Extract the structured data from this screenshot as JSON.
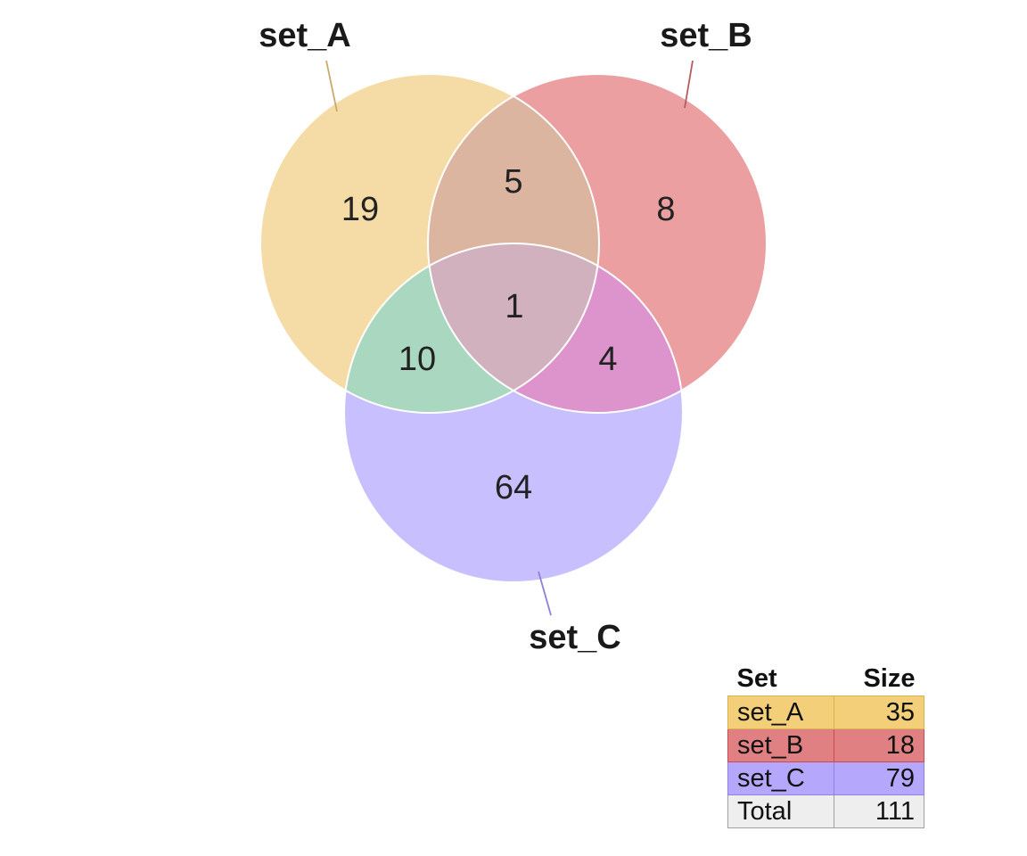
{
  "sets": [
    {
      "id": "a",
      "name": "set_A",
      "size": "35",
      "color": "#f5dca6",
      "table_color": "#f2cf78",
      "line_color": "#c9a96a"
    },
    {
      "id": "b",
      "name": "set_B",
      "size": "18",
      "color": "#eb9fa1",
      "table_color": "#e08083",
      "line_color": "#b55b63"
    },
    {
      "id": "c",
      "name": "set_C",
      "size": "79",
      "color": "#c8bffe",
      "table_color": "#b5a8fc",
      "line_color": "#8f80d6"
    }
  ],
  "regions": {
    "a_only": "19",
    "b_only": "8",
    "c_only": "64",
    "a_b": "5",
    "a_c": "10",
    "b_c": "4",
    "a_b_c": "1"
  },
  "region_colors": {
    "a_b": "#dbb59f",
    "a_c": "#a9d7bf",
    "b_c": "#dd94cd",
    "a_b_c": "#d1b1bd"
  },
  "table": {
    "header_set": "Set",
    "header_size": "Size",
    "total_label": "Total",
    "total_value": "111"
  }
}
